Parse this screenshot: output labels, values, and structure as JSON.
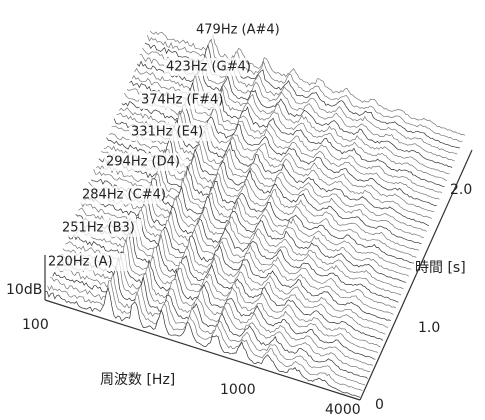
{
  "annotations": [
    "479Hz (A#4)",
    "423Hz (G#4)",
    "374Hz (F#4)",
    "331Hz (E4)",
    "294Hz (D4)",
    "284Hz (C#4)",
    "251Hz (B3)",
    "220Hz (A)"
  ],
  "axes": {
    "x_label": "周波数 [Hz]",
    "x_ticks": [
      "100",
      "1000",
      "4000"
    ],
    "y_label": "時間 [s]",
    "y_ticks": [
      "0",
      "1.0",
      "2.0"
    ],
    "z_tick": "10dB"
  }
}
